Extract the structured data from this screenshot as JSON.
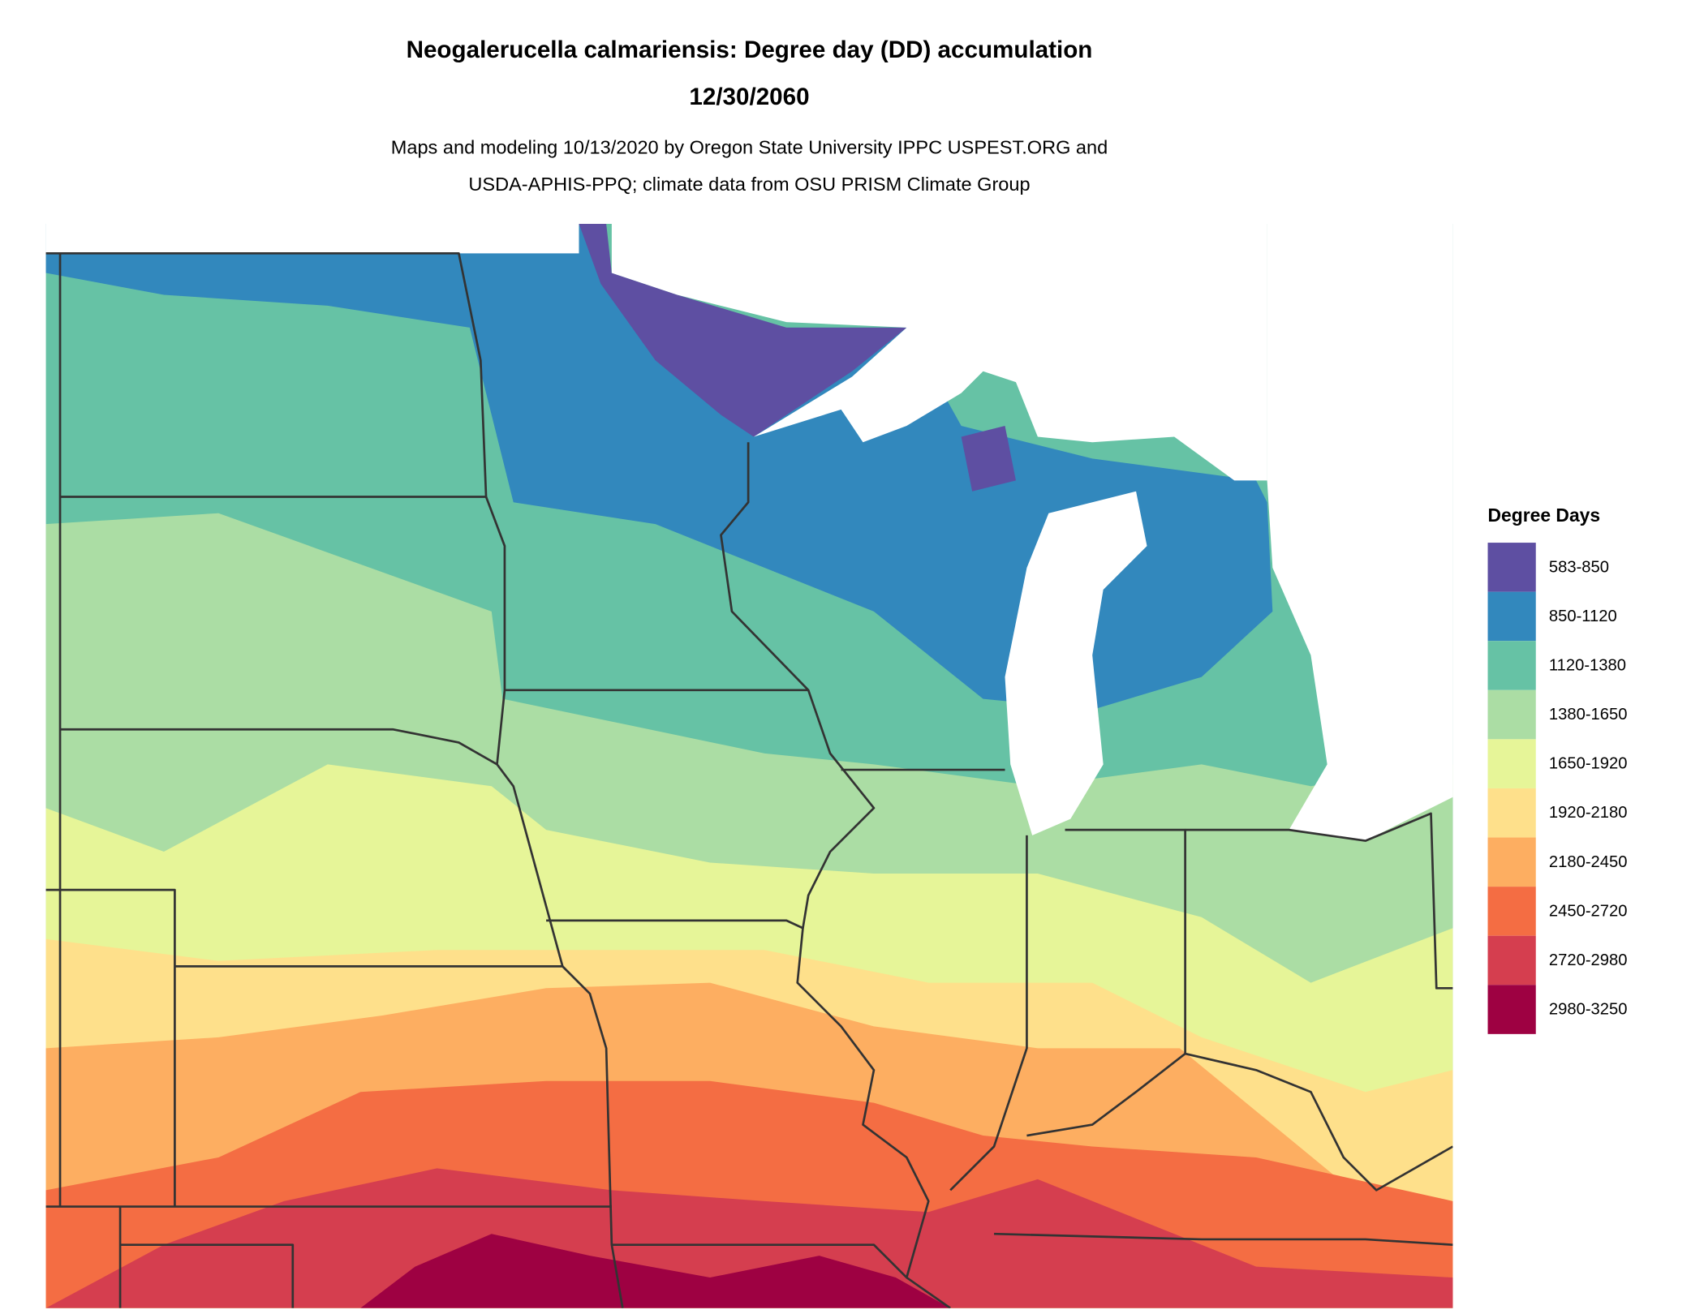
{
  "title": "Neogalerucella calmariensis: Degree day (DD) accumulation",
  "date": "12/30/2060",
  "subtitle": [
    "Maps and modeling 10/13/2020 by Oregon State University IPPC USPEST.ORG and",
    "USDA-APHIS-PPQ; climate data from OSU PRISM Climate Group"
  ],
  "legend": {
    "title": "Degree Days",
    "items": [
      {
        "label": "583-850",
        "color": "#5e4fa2"
      },
      {
        "label": "850-1120",
        "color": "#3288bd"
      },
      {
        "label": "1120-1380",
        "color": "#66c2a5"
      },
      {
        "label": "1380-1650",
        "color": "#abdda4"
      },
      {
        "label": "1650-1920",
        "color": "#e6f598"
      },
      {
        "label": "1920-2180",
        "color": "#fee08b"
      },
      {
        "label": "2180-2450",
        "color": "#fdae61"
      },
      {
        "label": "2450-2720",
        "color": "#f46d43"
      },
      {
        "label": "2720-2980",
        "color": "#d53e4f"
      },
      {
        "label": "2980-3250",
        "color": "#9e0142"
      }
    ]
  }
}
